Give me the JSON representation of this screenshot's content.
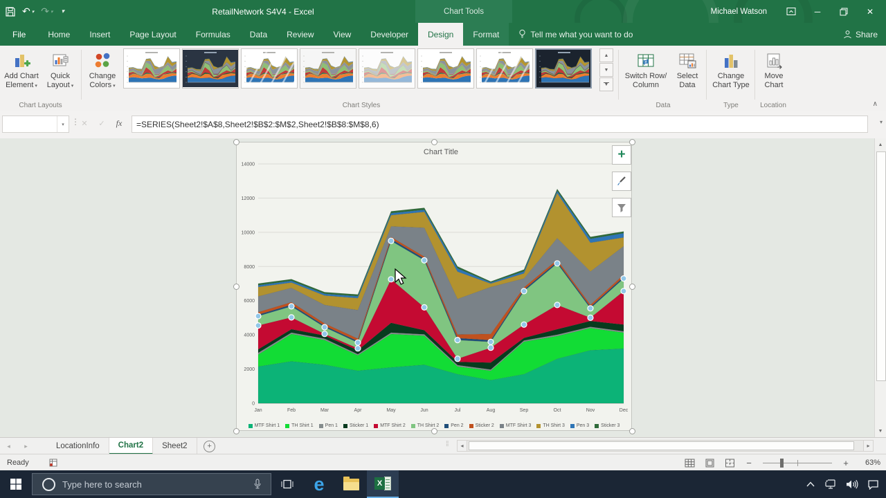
{
  "title_bar": {
    "title": "RetailNetwork S4V4 - Excel",
    "contextual_group_label": "Chart Tools",
    "user_name": "Michael Watson"
  },
  "icons": {
    "undo": "↶",
    "redo": "↷",
    "dropdown": "▾",
    "minimize": "─",
    "close": "✕",
    "collapse_ribbon": "∧",
    "cancel": "✕",
    "enter": "✓",
    "insert_function": "fx",
    "sheet_nav_left": "◂",
    "sheet_nav_right": "▸",
    "add_sheet": "+",
    "scroll_up": "▲",
    "scroll_down": "▼",
    "formula_dots": "⋮",
    "splitter": "⁞⁞"
  },
  "ribbon": {
    "tabs": [
      {
        "label": "File",
        "file": true
      },
      {
        "label": "Home"
      },
      {
        "label": "Insert"
      },
      {
        "label": "Page Layout"
      },
      {
        "label": "Formulas"
      },
      {
        "label": "Data"
      },
      {
        "label": "Review"
      },
      {
        "label": "View"
      },
      {
        "label": "Developer"
      },
      {
        "label": "Design",
        "active": true,
        "contextual": true
      },
      {
        "label": "Format",
        "contextual": true
      }
    ],
    "tell_me_label": "Tell me what you want to do",
    "share_label": "Share",
    "chart_layouts": {
      "group_label": "Chart Layouts",
      "add_chart_element": {
        "line1": "Add Chart",
        "line2": "Element"
      },
      "quick_layout": {
        "line1": "Quick",
        "line2": "Layout"
      }
    },
    "chart_styles": {
      "group_label": "Chart Styles",
      "change_colors": {
        "line1": "Change",
        "line2": "Colors"
      },
      "styles": [
        {
          "name": "Style 1",
          "bg": "#FFFFFF"
        },
        {
          "name": "Style 2",
          "bg": "#2A3442"
        },
        {
          "name": "Style 3",
          "bg": "#FFFFFF",
          "hatch": true
        },
        {
          "name": "Style 4",
          "bg": "#F6F6F6"
        },
        {
          "name": "Style 5",
          "bg": "#FCFCFC",
          "pale": true
        },
        {
          "name": "Style 6",
          "bg": "#FFFFFF"
        },
        {
          "name": "Style 7",
          "bg": "#FFFFFF",
          "hatch": true
        },
        {
          "name": "Style 8",
          "bg": "#1B232E",
          "selected": true
        }
      ]
    },
    "data_group": {
      "group_label": "Data",
      "switch_row_column": {
        "line1": "Switch Row/",
        "line2": "Column"
      },
      "select_data": {
        "line1": "Select",
        "line2": "Data"
      }
    },
    "type_group": {
      "group_label": "Type",
      "change_chart_type": {
        "line1": "Change",
        "line2": "Chart Type"
      }
    },
    "location_group": {
      "group_label": "Location",
      "move_chart": {
        "line1": "Move",
        "line2": "Chart"
      }
    }
  },
  "formula_bar": {
    "name_box_value": "",
    "formula": "=SERIES(Sheet2!$A$8,Sheet2!$B$2:$M$2,Sheet2!$B$8:$M$8,6)"
  },
  "chart_data": {
    "type": "area",
    "stacked": true,
    "title": "Chart Title",
    "categories": [
      "Jan",
      "Feb",
      "Mar",
      "Apr",
      "May",
      "Jun",
      "Jul",
      "Aug",
      "Sep",
      "Oct",
      "Nov",
      "Dec"
    ],
    "ylim": [
      0,
      14000
    ],
    "ytick_step": 2000,
    "grid": true,
    "legend_position": "bottom",
    "selected_series": "TH Shirt 2",
    "marker_color": "#92C7E8",
    "series": [
      {
        "name": "MTF Shirt 1",
        "color": "#0CB377",
        "values": [
          2150,
          2450,
          2250,
          1900,
          2100,
          2250,
          1700,
          1350,
          1700,
          2600,
          3100,
          3200
        ]
      },
      {
        "name": "TH Shirt 1",
        "color": "#12DC35",
        "values": [
          700,
          1600,
          1450,
          900,
          1950,
          1700,
          450,
          550,
          1900,
          1330,
          1300,
          930
        ]
      },
      {
        "name": "Pen 1",
        "color": "#858D8D",
        "values": [
          100,
          80,
          80,
          70,
          80,
          80,
          80,
          70,
          70,
          80,
          70,
          80
        ]
      },
      {
        "name": "Sticker 1",
        "color": "#083B1E",
        "values": [
          200,
          200,
          180,
          230,
          570,
          240,
          190,
          410,
          150,
          320,
          340,
          390
        ]
      },
      {
        "name": "MTF Shirt 2",
        "color": "#C40A32",
        "values": [
          1400,
          690,
          100,
          110,
          2550,
          1340,
          180,
          870,
          780,
          1420,
          190,
          1960
        ]
      },
      {
        "name": "TH Shirt 2",
        "color": "#80C581",
        "values": [
          550,
          650,
          390,
          340,
          2250,
          2750,
          1100,
          340,
          1960,
          2430,
          550,
          740
        ]
      },
      {
        "name": "Pen 2",
        "color": "#1F4E79",
        "values": [
          80,
          90,
          80,
          80,
          110,
          100,
          110,
          100,
          90,
          90,
          90,
          90
        ]
      },
      {
        "name": "Sticker 2",
        "color": "#C0511F",
        "values": [
          150,
          150,
          140,
          150,
          120,
          120,
          210,
          370,
          130,
          120,
          120,
          130
        ]
      },
      {
        "name": "MTF Shirt 3",
        "color": "#7A8288",
        "values": [
          920,
          840,
          1080,
          1670,
          620,
          1690,
          2080,
          2740,
          520,
          1270,
          1950,
          1670
        ]
      },
      {
        "name": "TH Shirt 3",
        "color": "#B2922F",
        "values": [
          550,
          310,
          550,
          700,
          650,
          930,
          1600,
          200,
          300,
          2640,
          1680,
          510
        ]
      },
      {
        "name": "Pen 3",
        "color": "#2E75B6",
        "values": [
          100,
          100,
          100,
          110,
          120,
          120,
          190,
          60,
          120,
          120,
          230,
          250
        ]
      },
      {
        "name": "Sticker 3",
        "color": "#2F6B3A",
        "values": [
          100,
          100,
          100,
          100,
          110,
          110,
          110,
          60,
          100,
          110,
          110,
          100
        ]
      }
    ]
  },
  "sheet_bar": {
    "tabs": [
      {
        "label": "LocationInfo"
      },
      {
        "label": "Chart2",
        "active": true
      },
      {
        "label": "Sheet2"
      }
    ]
  },
  "status_bar": {
    "ready_label": "Ready",
    "zoom_level": "63%"
  },
  "taskbar": {
    "search_placeholder": "Type here to search"
  }
}
